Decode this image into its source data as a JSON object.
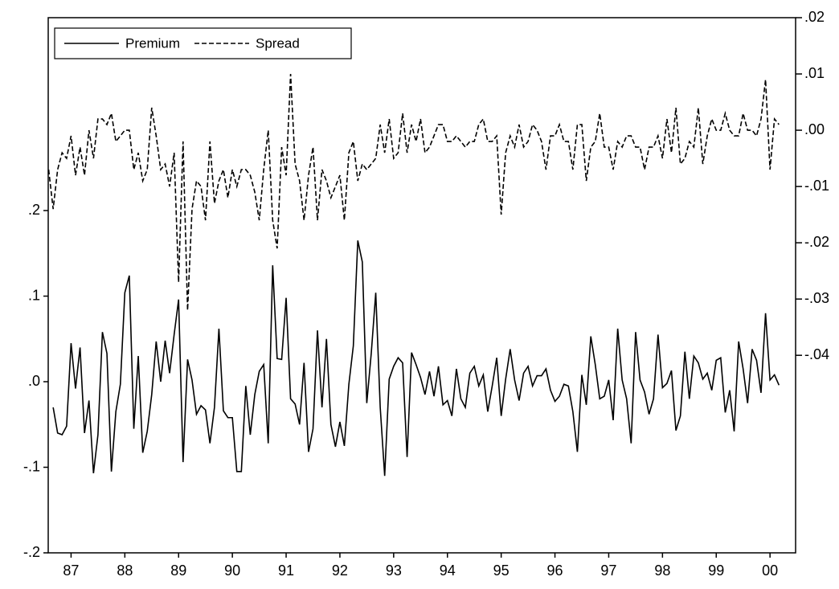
{
  "chart_data": {
    "type": "line",
    "x": [
      1987.083,
      1987.167,
      1987.25,
      1987.333,
      1987.417,
      1987.5,
      1987.583,
      1987.667,
      1987.75,
      1987.833,
      1987.917,
      1988.0,
      1988.083,
      1988.167,
      1988.25,
      1988.333,
      1988.417,
      1988.5,
      1988.583,
      1988.667,
      1988.75,
      1988.833,
      1988.917,
      1989.0,
      1989.083,
      1989.167,
      1989.25,
      1989.333,
      1989.417,
      1989.5,
      1989.583,
      1989.667,
      1989.75,
      1989.833,
      1989.917,
      1990.0,
      1990.083,
      1990.167,
      1990.25,
      1990.333,
      1990.417,
      1990.5,
      1990.583,
      1990.667,
      1990.75,
      1990.833,
      1990.917,
      1991.0,
      1991.083,
      1991.167,
      1991.25,
      1991.333,
      1991.417,
      1991.5,
      1991.583,
      1991.667,
      1991.75,
      1991.833,
      1991.917,
      1992.0,
      1992.083,
      1992.167,
      1992.25,
      1992.333,
      1992.417,
      1992.5,
      1992.583,
      1992.667,
      1992.75,
      1992.833,
      1992.917,
      1993.0,
      1993.083,
      1993.167,
      1993.25,
      1993.333,
      1993.417,
      1993.5,
      1993.583,
      1993.667,
      1993.75,
      1993.833,
      1993.917,
      1994.0,
      1994.083,
      1994.167,
      1994.25,
      1994.333,
      1994.417,
      1994.5,
      1994.583,
      1994.667,
      1994.75,
      1994.833,
      1994.917,
      1995.0,
      1995.083,
      1995.167,
      1995.25,
      1995.333,
      1995.417,
      1995.5,
      1995.583,
      1995.667,
      1995.75,
      1995.833,
      1995.917,
      1996.0,
      1996.083,
      1996.167,
      1996.25,
      1996.333,
      1996.417,
      1996.5,
      1996.583,
      1996.667,
      1996.75,
      1996.833,
      1996.917,
      1997.0,
      1997.083,
      1997.167,
      1997.25,
      1997.333,
      1997.417,
      1997.5,
      1997.583,
      1997.667,
      1997.75,
      1997.833,
      1997.917,
      1998.0,
      1998.083,
      1998.167,
      1998.25,
      1998.333,
      1998.417,
      1998.5,
      1998.583,
      1998.667,
      1998.75,
      1998.833,
      1998.917,
      1999.0,
      1999.083,
      1999.167,
      1999.25,
      1999.333,
      1999.417,
      1999.5,
      1999.583,
      1999.667,
      1999.75,
      1999.833,
      1999.917,
      2000.0,
      2000.083,
      2000.167,
      2000.25,
      2000.333,
      2000.417,
      2000.5,
      2000.583,
      2000.667
    ],
    "series": [
      {
        "name": "Premium",
        "color": "#000000",
        "dash": "solid",
        "axis": "y",
        "values": [
          null,
          -0.03,
          -0.06,
          -0.062,
          -0.052,
          0.045,
          -0.008,
          0.04,
          -0.06,
          -0.022,
          -0.107,
          -0.062,
          0.058,
          0.033,
          -0.105,
          -0.035,
          -0.003,
          0.104,
          0.124,
          -0.055,
          0.03,
          -0.083,
          -0.058,
          -0.015,
          0.047,
          0.0,
          0.048,
          0.01,
          0.055,
          0.096,
          -0.094,
          0.026,
          0.002,
          -0.038,
          -0.028,
          -0.033,
          -0.072,
          -0.03,
          0.062,
          -0.034,
          -0.042,
          -0.042,
          -0.105,
          -0.105,
          -0.005,
          -0.062,
          -0.015,
          0.012,
          0.02,
          -0.072,
          0.136,
          0.027,
          0.026,
          0.098,
          -0.02,
          -0.026,
          -0.05,
          0.022,
          -0.082,
          -0.055,
          0.06,
          -0.03,
          0.05,
          -0.05,
          -0.076,
          -0.047,
          -0.075,
          -0.003,
          0.042,
          0.165,
          0.14,
          -0.025,
          0.033,
          0.104,
          -0.03,
          -0.11,
          0.003,
          0.018,
          0.028,
          0.022,
          -0.088,
          0.034,
          0.02,
          0.005,
          -0.015,
          0.012,
          -0.017,
          0.018,
          -0.027,
          -0.022,
          -0.04,
          0.015,
          -0.02,
          -0.03,
          0.01,
          0.018,
          -0.005,
          0.008,
          -0.035,
          -0.005,
          0.028,
          -0.04,
          0.003,
          0.038,
          0.002,
          -0.022,
          0.01,
          0.018,
          -0.005,
          0.007,
          0.007,
          0.015,
          -0.01,
          -0.023,
          -0.017,
          -0.003,
          -0.005,
          -0.035,
          -0.082,
          0.008,
          -0.027,
          0.053,
          0.02,
          -0.02,
          -0.017,
          0.002,
          -0.045,
          0.062,
          0.002,
          -0.02,
          -0.072,
          0.058,
          0.002,
          -0.012,
          -0.038,
          -0.02,
          0.055,
          -0.007,
          -0.002,
          0.013,
          -0.057,
          -0.04,
          0.035,
          -0.02,
          0.03,
          0.022,
          0.003,
          0.01,
          -0.01,
          0.025,
          0.028,
          -0.036,
          -0.01,
          -0.058,
          0.047,
          0.015,
          -0.025,
          0.038,
          0.025,
          -0.013,
          0.08,
          0.002,
          0.008,
          -0.004
        ]
      },
      {
        "name": "Spread",
        "color": "#000000",
        "dash": "dashed",
        "axis": "y2",
        "values": [
          -0.007,
          -0.014,
          -0.007,
          -0.004,
          -0.005,
          -0.001,
          -0.008,
          -0.003,
          -0.008,
          0.0,
          -0.005,
          0.002,
          0.002,
          0.001,
          0.003,
          -0.002,
          -0.001,
          0.0,
          0.0,
          -0.007,
          -0.004,
          -0.009,
          -0.007,
          0.004,
          -0.001,
          -0.007,
          -0.006,
          -0.01,
          -0.004,
          -0.027,
          -0.002,
          -0.032,
          -0.014,
          -0.009,
          -0.01,
          -0.016,
          -0.002,
          -0.013,
          -0.009,
          -0.007,
          -0.012,
          -0.007,
          -0.01,
          -0.007,
          -0.007,
          -0.008,
          -0.011,
          -0.016,
          -0.007,
          0.0,
          -0.016,
          -0.021,
          -0.003,
          -0.008,
          0.01,
          -0.006,
          -0.009,
          -0.016,
          -0.008,
          -0.003,
          -0.016,
          -0.007,
          -0.009,
          -0.012,
          -0.01,
          -0.008,
          -0.016,
          -0.004,
          -0.002,
          -0.009,
          -0.006,
          -0.007,
          -0.006,
          -0.005,
          0.001,
          -0.004,
          0.002,
          -0.005,
          -0.004,
          0.003,
          -0.004,
          0.001,
          -0.002,
          0.002,
          -0.004,
          -0.003,
          -0.001,
          0.001,
          0.001,
          -0.002,
          -0.002,
          -0.001,
          -0.002,
          -0.003,
          -0.002,
          -0.002,
          0.001,
          0.002,
          -0.002,
          -0.002,
          -0.001,
          -0.015,
          -0.004,
          -0.001,
          -0.003,
          0.001,
          -0.003,
          -0.002,
          0.001,
          0.0,
          -0.002,
          -0.007,
          -0.001,
          -0.001,
          0.001,
          -0.002,
          -0.002,
          -0.007,
          0.001,
          0.001,
          -0.009,
          -0.003,
          -0.002,
          0.003,
          -0.003,
          -0.003,
          -0.007,
          -0.002,
          -0.003,
          -0.001,
          -0.001,
          -0.003,
          -0.003,
          -0.007,
          -0.003,
          -0.003,
          -0.001,
          -0.005,
          0.002,
          -0.004,
          0.004,
          -0.006,
          -0.005,
          -0.002,
          -0.003,
          0.004,
          -0.006,
          -0.001,
          0.002,
          0.0,
          0.0,
          0.003,
          0.0,
          -0.001,
          -0.001,
          0.003,
          0.0,
          0.0,
          -0.001,
          0.002,
          0.009,
          -0.007,
          0.002,
          0.001
        ]
      }
    ],
    "xlim": [
      1987.075,
      2000.976
    ],
    "xticks": [
      {
        "value": 1987.5,
        "label": "87"
      },
      {
        "value": 1988.5,
        "label": "88"
      },
      {
        "value": 1989.5,
        "label": "89"
      },
      {
        "value": 1990.5,
        "label": "90"
      },
      {
        "value": 1991.5,
        "label": "91"
      },
      {
        "value": 1992.5,
        "label": "92"
      },
      {
        "value": 1993.5,
        "label": "93"
      },
      {
        "value": 1994.5,
        "label": "94"
      },
      {
        "value": 1995.5,
        "label": "95"
      },
      {
        "value": 1996.5,
        "label": "96"
      },
      {
        "value": 1997.5,
        "label": "97"
      },
      {
        "value": 1998.5,
        "label": "98"
      },
      {
        "value": 1999.5,
        "label": "99"
      },
      {
        "value": 2000.5,
        "label": "00"
      }
    ],
    "ylim": [
      -0.2,
      0.4254
    ],
    "yticks": [
      {
        "value": 0.2,
        "label": ".2"
      },
      {
        "value": 0.1,
        "label": ".1"
      },
      {
        "value": 0.0,
        "label": ".0"
      },
      {
        "value": -0.1,
        "label": "-.1"
      },
      {
        "value": -0.2,
        "label": "-.2"
      }
    ],
    "y2lim": [
      -0.0751,
      0.02
    ],
    "y2ticks": [
      {
        "value": 0.02,
        "label": ".02"
      },
      {
        "value": 0.01,
        "label": ".01"
      },
      {
        "value": 0.0,
        "label": ".00"
      },
      {
        "value": -0.01,
        "label": "-.01"
      },
      {
        "value": -0.02,
        "label": "-.02"
      },
      {
        "value": -0.03,
        "label": "-.03"
      },
      {
        "value": -0.04,
        "label": "-.04"
      }
    ],
    "grid": false,
    "legend": "top-left"
  }
}
